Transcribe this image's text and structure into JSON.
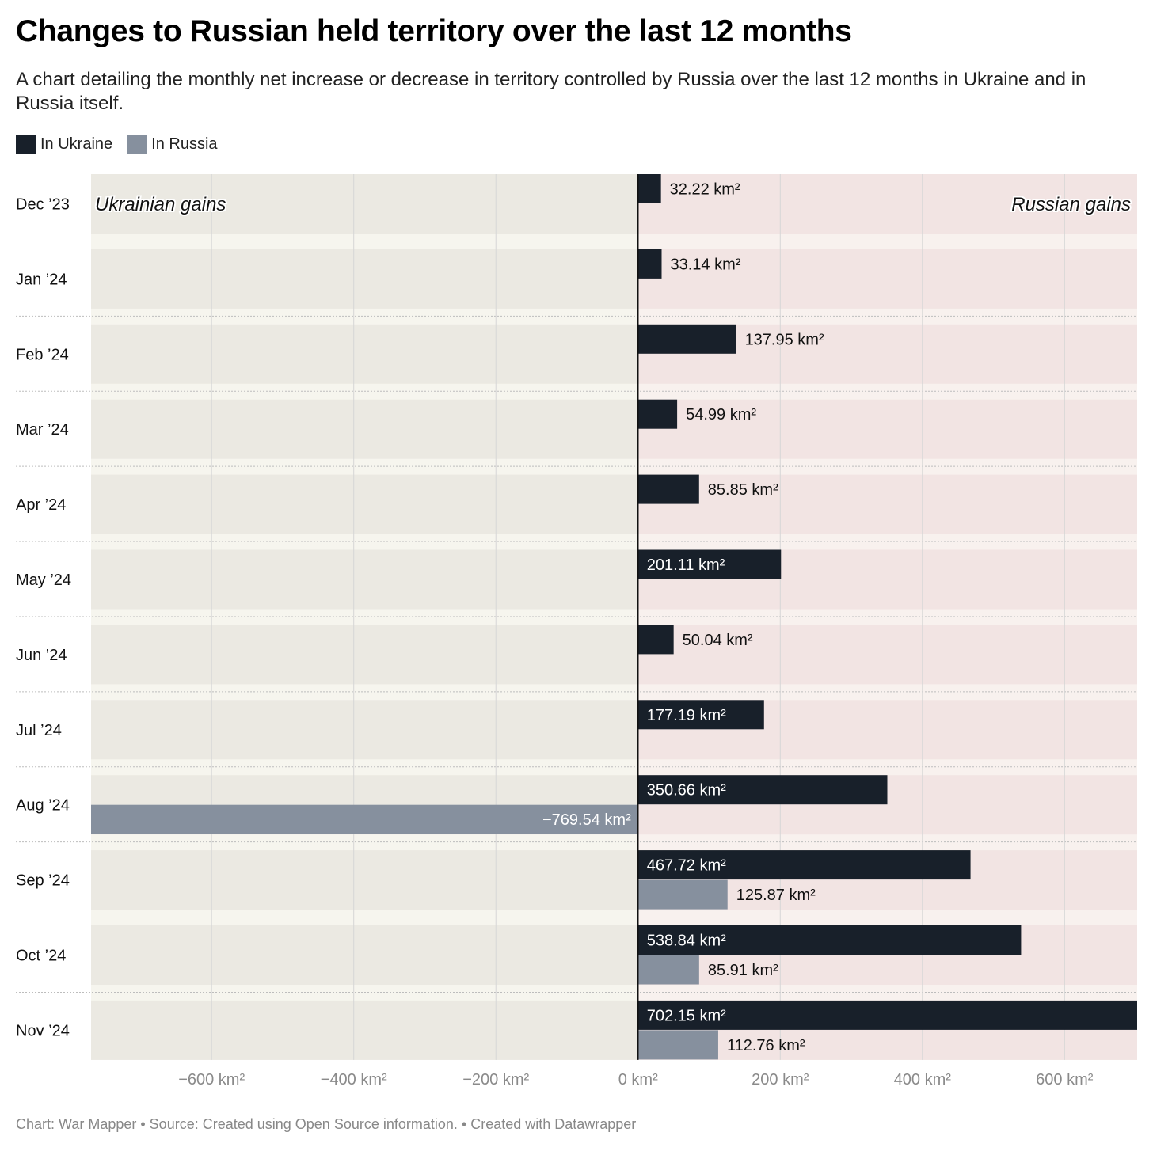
{
  "title": "Changes to Russian held territory over the last 12 months",
  "subtitle": "A chart detailing the monthly net increase or decrease in territory controlled by Russia over the last 12 months in Ukraine and in Russia itself.",
  "legend": [
    {
      "label": "In Ukraine",
      "color": "#18202a"
    },
    {
      "label": "In Russia",
      "color": "#86909e"
    }
  ],
  "footer": "Chart: War Mapper • Source: Created using Open Source information.  • Created with Datawrapper",
  "colors": {
    "negative_bg": "#ebe9e2",
    "positive_bg": "#f2e4e3",
    "gap_bg": "#f6f5ee",
    "gridline": "#d6d6d6",
    "axis": "#111111",
    "ukraine": "#18202a",
    "russia": "#86909e"
  },
  "chart_data": {
    "type": "bar",
    "orientation": "horizontal",
    "categories": [
      "Dec ’23",
      "Jan ’24",
      "Feb ’24",
      "Mar ’24",
      "Apr ’24",
      "May ’24",
      "Jun ’24",
      "Jul ’24",
      "Aug ’24",
      "Sep ’24",
      "Oct ’24",
      "Nov ’24"
    ],
    "series": [
      {
        "name": "In Ukraine",
        "values": [
          32.22,
          33.14,
          137.95,
          54.99,
          85.85,
          201.11,
          50.04,
          177.19,
          350.66,
          467.72,
          538.84,
          702.15
        ],
        "labels": [
          "32.22 km²",
          "33.14 km²",
          "137.95 km²",
          "54.99 km²",
          "85.85 km²",
          "201.11 km²",
          "50.04 km²",
          "177.19 km²",
          "350.66 km²",
          "467.72 km²",
          "538.84 km²",
          "702.15 km²"
        ]
      },
      {
        "name": "In Russia",
        "values": [
          null,
          null,
          null,
          null,
          null,
          null,
          null,
          null,
          -769.54,
          125.87,
          85.91,
          112.76
        ],
        "labels": [
          "",
          "",
          "",
          "",
          "",
          "",
          "",
          "",
          "−769.54 km²",
          "125.87 km²",
          "85.91 km²",
          "112.76 km²"
        ]
      }
    ],
    "xlim": [
      -769.54,
      702.15
    ],
    "xticks": [
      -600,
      -400,
      -200,
      0,
      200,
      400,
      600
    ],
    "xtick_labels": [
      "−600 km²",
      "−400 km²",
      "−200 km²",
      "0 km²",
      "200 km²",
      "400 km²",
      "600 km²"
    ],
    "annotations": [
      {
        "text": "Ukrainian gains",
        "side": "left"
      },
      {
        "text": "Russian gains",
        "side": "right"
      }
    ],
    "grid": true
  }
}
